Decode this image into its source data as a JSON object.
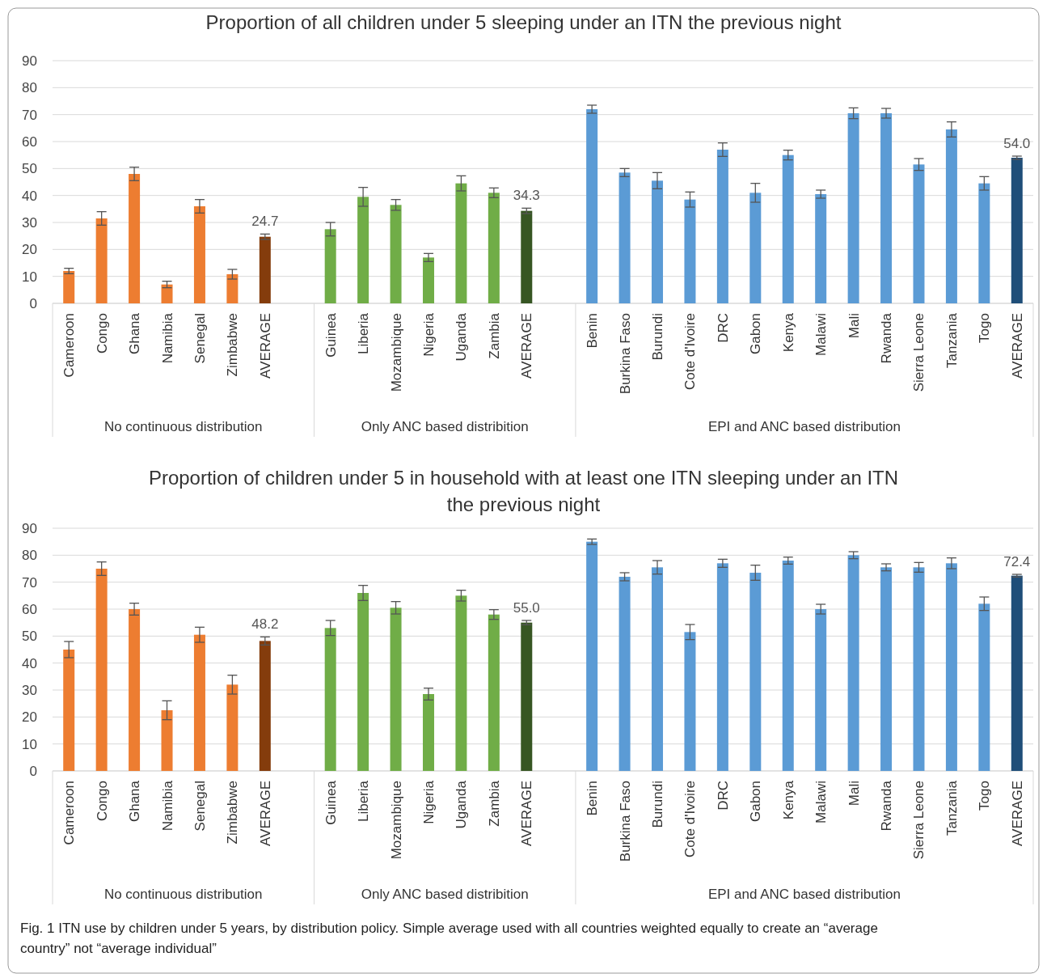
{
  "chart_data": [
    {
      "type": "bar",
      "title": "Proportion of all children under 5 sleeping under an ITN the previous night",
      "categories": [
        "Cameroon",
        "Congo",
        "Ghana",
        "Namibia",
        "Senegal",
        "Zimbabwe",
        "AVERAGE",
        "Guinea",
        "Liberia",
        "Mozambique",
        "Nigeria",
        "Uganda",
        "Zambia",
        "AVERAGE",
        "Benin",
        "Burkina Faso",
        "Burundi",
        "Cote d'Ivoire",
        "DRC",
        "Gabon",
        "Kenya",
        "Malawi",
        "Mali",
        "Rwanda",
        "Sierra Leone",
        "Tanzania",
        "Togo",
        "AVERAGE"
      ],
      "values": [
        12,
        31.5,
        48,
        7,
        36,
        10.8,
        24.7,
        27.5,
        39.5,
        36.5,
        17,
        44.5,
        41,
        34.3,
        72,
        48.5,
        45.5,
        38.5,
        57,
        41,
        55,
        40.5,
        70.5,
        70.5,
        51.5,
        64.5,
        44.5,
        54.0
      ],
      "errors": [
        1,
        2.5,
        2.5,
        1.2,
        2.5,
        1.8,
        1,
        2.5,
        3.5,
        2,
        1.5,
        2.8,
        1.8,
        1,
        1.5,
        1.5,
        3,
        2.8,
        2.5,
        3.5,
        1.8,
        1.5,
        2,
        1.8,
        2.2,
        2.8,
        2.5,
        0.6
      ],
      "colors": [
        "#ed7d31",
        "#ed7d31",
        "#ed7d31",
        "#ed7d31",
        "#ed7d31",
        "#ed7d31",
        "#843c0c",
        "#70ad47",
        "#70ad47",
        "#70ad47",
        "#70ad47",
        "#70ad47",
        "#70ad47",
        "#375623",
        "#5b9bd5",
        "#5b9bd5",
        "#5b9bd5",
        "#5b9bd5",
        "#5b9bd5",
        "#5b9bd5",
        "#5b9bd5",
        "#5b9bd5",
        "#5b9bd5",
        "#5b9bd5",
        "#5b9bd5",
        "#5b9bd5",
        "#5b9bd5",
        "#1f4e79"
      ],
      "value_labels": [
        null,
        null,
        null,
        null,
        null,
        null,
        "24.7",
        null,
        null,
        null,
        null,
        null,
        null,
        "34.3",
        null,
        null,
        null,
        null,
        null,
        null,
        null,
        null,
        null,
        null,
        null,
        null,
        null,
        "54.0"
      ],
      "ylim": [
        0,
        90
      ],
      "yticks": [
        0,
        10,
        20,
        30,
        40,
        50,
        60,
        70,
        80,
        90
      ],
      "grid": "y",
      "annotations": [
        "No continuous distribution",
        "Only ANC based distribition",
        "EPI and ANC based distribution"
      ]
    },
    {
      "type": "bar",
      "title": "Proportion of children under 5 in household with at least one ITN sleeping under an ITN the previous night",
      "categories": [
        "Cameroon",
        "Congo",
        "Ghana",
        "Namibia",
        "Senegal",
        "Zimbabwe",
        "AVERAGE",
        "Guinea",
        "Liberia",
        "Mozambique",
        "Nigeria",
        "Uganda",
        "Zambia",
        "AVERAGE",
        "Benin",
        "Burkina Faso",
        "Burundi",
        "Cote d'Ivoire",
        "DRC",
        "Gabon",
        "Kenya",
        "Malawi",
        "Mali",
        "Rwanda",
        "Sierra Leone",
        "Tanzania",
        "Togo",
        "AVERAGE"
      ],
      "values": [
        45,
        75,
        60,
        22.5,
        50.5,
        32,
        48.2,
        53,
        66,
        60.5,
        28.5,
        65,
        58,
        55.0,
        85,
        72,
        75.5,
        51.5,
        77,
        73.5,
        78,
        60,
        80,
        75.5,
        75.5,
        77,
        62,
        72.4
      ],
      "errors": [
        3,
        2.5,
        2.2,
        3.5,
        2.8,
        3.5,
        1.5,
        2.8,
        2.8,
        2.3,
        2.2,
        2,
        1.8,
        0.8,
        1,
        1.5,
        2.5,
        2.8,
        1.5,
        2.8,
        1.3,
        1.8,
        1.3,
        1.3,
        1.8,
        2,
        2.5,
        0.5
      ],
      "colors": [
        "#ed7d31",
        "#ed7d31",
        "#ed7d31",
        "#ed7d31",
        "#ed7d31",
        "#ed7d31",
        "#843c0c",
        "#70ad47",
        "#70ad47",
        "#70ad47",
        "#70ad47",
        "#70ad47",
        "#70ad47",
        "#375623",
        "#5b9bd5",
        "#5b9bd5",
        "#5b9bd5",
        "#5b9bd5",
        "#5b9bd5",
        "#5b9bd5",
        "#5b9bd5",
        "#5b9bd5",
        "#5b9bd5",
        "#5b9bd5",
        "#5b9bd5",
        "#5b9bd5",
        "#5b9bd5",
        "#1f4e79"
      ],
      "value_labels": [
        null,
        null,
        null,
        null,
        null,
        null,
        "48.2",
        null,
        null,
        null,
        null,
        null,
        null,
        "55.0",
        null,
        null,
        null,
        null,
        null,
        null,
        null,
        null,
        null,
        null,
        null,
        null,
        null,
        "72.4"
      ],
      "ylim": [
        0,
        90
      ],
      "yticks": [
        0,
        10,
        20,
        30,
        40,
        50,
        60,
        70,
        80,
        90
      ],
      "grid": "y",
      "annotations": [
        "No continuous distribution",
        "Only ANC based distribition",
        "EPI and ANC based distribution",
        "Fig. 1  ITN use by children under 5 years, by distribution policy. Simple average used with all countries weighted equally to create an “average country” not “average individual”"
      ]
    }
  ]
}
